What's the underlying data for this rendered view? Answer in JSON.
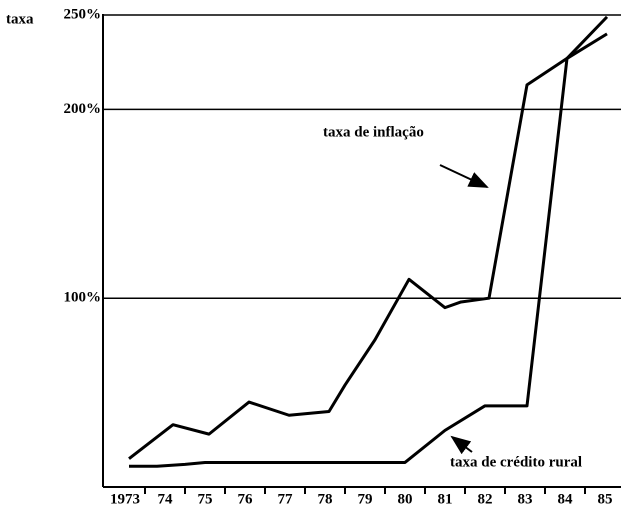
{
  "chart_data": {
    "type": "line",
    "y_label": "taxa",
    "annotations": [
      "taxa de inflação",
      "taxa de crédito rural"
    ],
    "xlim": [
      1972.45,
      1985.4
    ],
    "xticks": [
      {
        "value": 1973,
        "label": "1973"
      },
      {
        "value": 1974,
        "label": "74"
      },
      {
        "value": 1975,
        "label": "75"
      },
      {
        "value": 1976,
        "label": "76"
      },
      {
        "value": 1977,
        "label": "77"
      },
      {
        "value": 1978,
        "label": "78"
      },
      {
        "value": 1979,
        "label": "79"
      },
      {
        "value": 1980,
        "label": "80"
      },
      {
        "value": 1981,
        "label": "81"
      },
      {
        "value": 1982,
        "label": "82"
      },
      {
        "value": 1983,
        "label": "83"
      },
      {
        "value": 1984,
        "label": "84"
      },
      {
        "value": 1985,
        "label": "85"
      }
    ],
    "ylim": [
      0,
      250
    ],
    "yticks": [
      {
        "value": 100,
        "label": "100%"
      },
      {
        "value": 200,
        "label": "200%"
      },
      {
        "value": 250,
        "label": "250%"
      }
    ],
    "grid": true,
    "series": [
      {
        "name": "taxa de inflação",
        "color": "#000000",
        "x": [
          1973.1,
          1974.2,
          1975.1,
          1976.1,
          1977.1,
          1977.6,
          1978.1,
          1978.5,
          1979.25,
          1980.1,
          1981.0,
          1981.4,
          1982.1,
          1983.05,
          1984.05,
          1985.05
        ],
        "values": [
          15,
          33,
          28,
          45,
          38,
          39,
          40,
          54,
          78,
          110,
          95,
          98,
          100,
          213,
          227,
          240
        ]
      },
      {
        "name": "taxa de crédito rural",
        "color": "#000000",
        "x": [
          1973.1,
          1973.8,
          1974.5,
          1975.0,
          1980.0,
          1981.0,
          1982.0,
          1983.05,
          1984.05,
          1985.05
        ],
        "values": [
          11,
          11,
          12,
          13,
          13,
          30,
          43,
          43,
          227,
          249
        ]
      }
    ]
  }
}
